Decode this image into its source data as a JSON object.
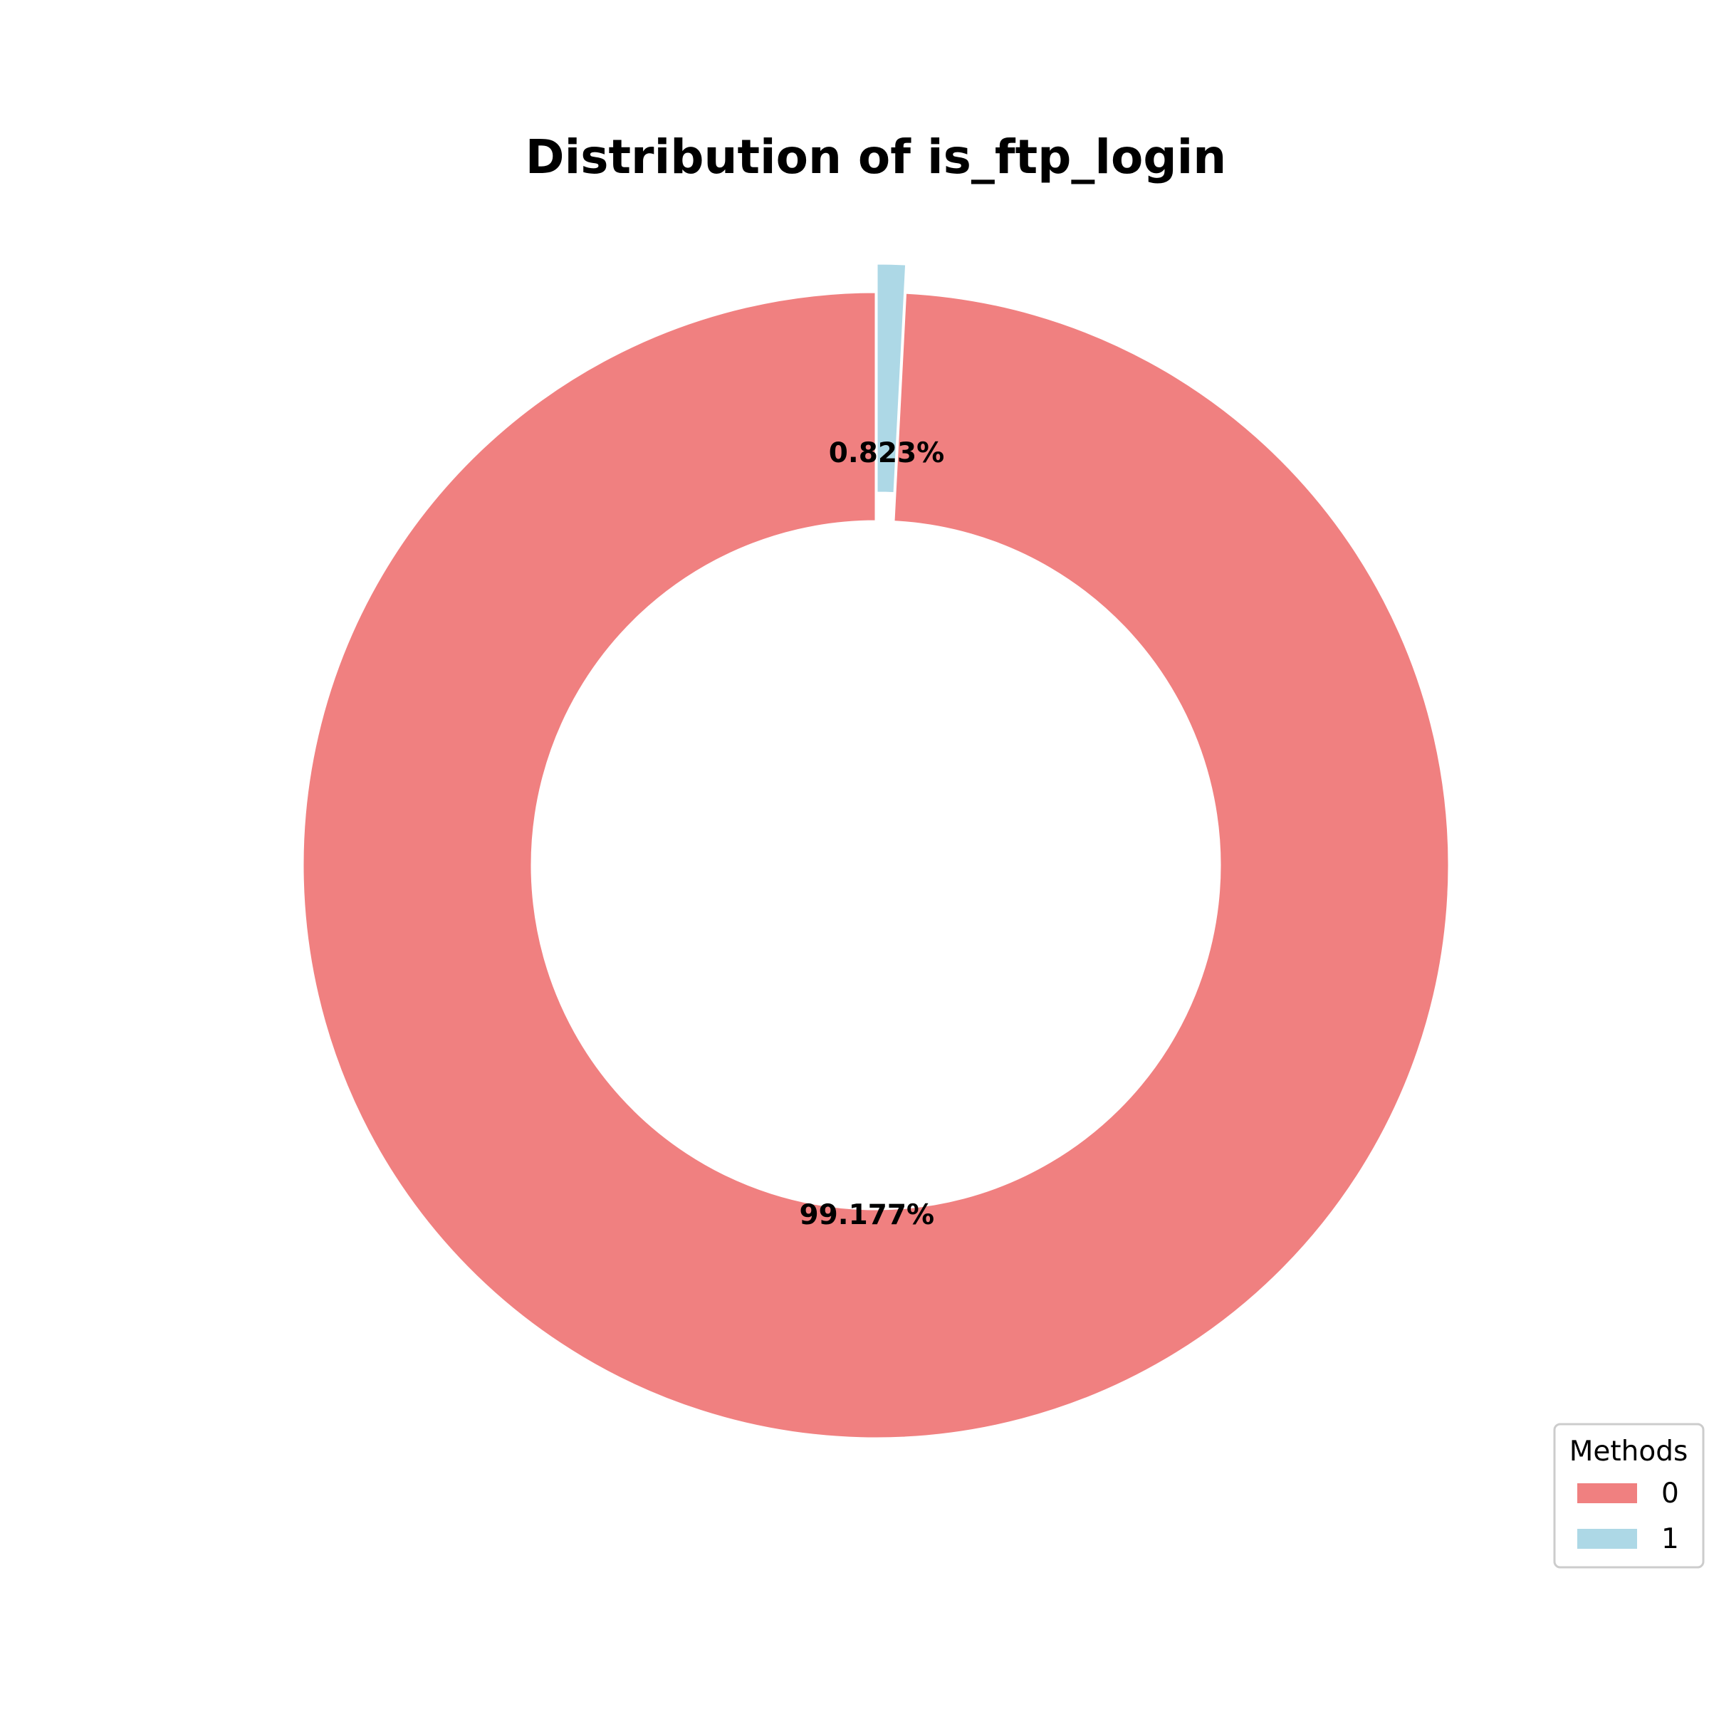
{
  "chart_data": {
    "type": "pie",
    "donut": true,
    "title": "Distribution of is_ftp_login",
    "start_angle_deg": 90,
    "direction": "counterclockwise",
    "slices": [
      {
        "label": "0",
        "value": 99.177,
        "pct_label": "99.177%",
        "color": "#f08080",
        "exploded": false
      },
      {
        "label": "1",
        "value": 0.823,
        "pct_label": "0.823%",
        "color": "#add8e6",
        "exploded": true
      }
    ],
    "legend": {
      "title": "Methods",
      "placement": "bottom-right",
      "entries": [
        "0",
        "1"
      ]
    }
  }
}
